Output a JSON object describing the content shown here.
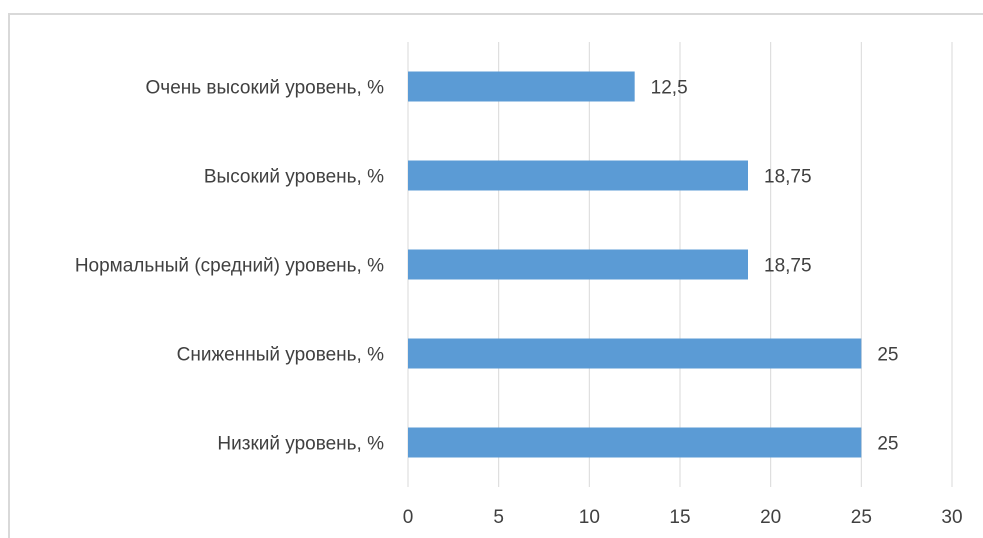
{
  "chart_data": {
    "type": "bar",
    "orientation": "horizontal",
    "categories": [
      "Очень высокий уровень, %",
      "Высокий уровень, %",
      "Нормальный (средний) уровень, %",
      "Сниженный уровень, %",
      "Низкий уровень, %"
    ],
    "values": [
      12.5,
      18.75,
      18.75,
      25,
      25
    ],
    "data_labels": [
      "12,5",
      "18,75",
      "18,75",
      "25",
      "25"
    ],
    "x_ticks": [
      "0",
      "5",
      "10",
      "15",
      "20",
      "25",
      "30"
    ],
    "xlim": [
      0,
      30
    ],
    "grid": true,
    "legend": "none",
    "bar_color": "#5b9bd5",
    "grid_color": "#d9d9d9",
    "text_color": "#404040"
  }
}
